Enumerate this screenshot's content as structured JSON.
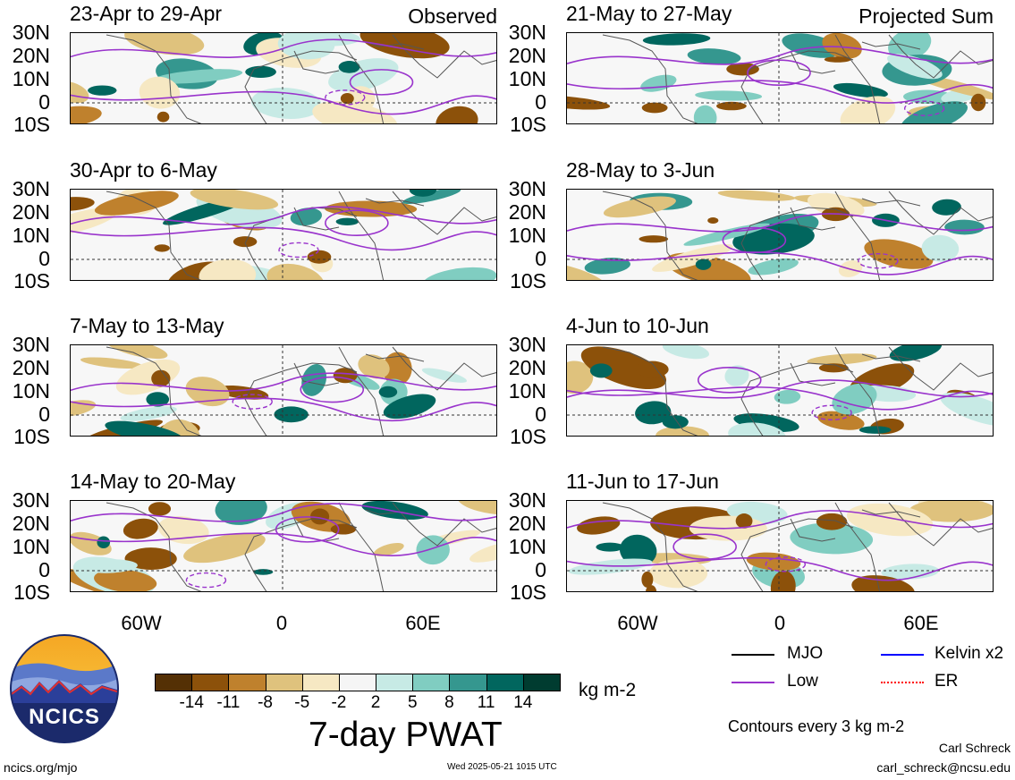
{
  "observed_tag": "Observed",
  "projected_tag": "Projected Sum",
  "panels": {
    "left": [
      {
        "title": "23-Apr to 29-Apr"
      },
      {
        "title": "30-Apr to 6-May"
      },
      {
        "title": "7-May to 13-May"
      },
      {
        "title": "14-May to 20-May"
      }
    ],
    "right": [
      {
        "title": "21-May to 27-May"
      },
      {
        "title": "28-May to 3-Jun"
      },
      {
        "title": "4-Jun to 10-Jun"
      },
      {
        "title": "11-Jun to 17-Jun"
      }
    ]
  },
  "lat_labels": [
    "30N",
    "20N",
    "10N",
    "0",
    "10S"
  ],
  "lon_labels": [
    "60W",
    "0",
    "60E"
  ],
  "colorbar": {
    "labels": [
      "-14",
      "-11",
      "-8",
      "-5",
      "-2",
      "2",
      "5",
      "8",
      "11",
      "14"
    ],
    "colors": [
      "#543005",
      "#8c510a",
      "#bf812d",
      "#dfc27d",
      "#f6e8c3",
      "#f5f5f5",
      "#c7eae5",
      "#80cdc1",
      "#35978f",
      "#01665e",
      "#003c30"
    ],
    "units": "kg m-2",
    "title": "7-day PWAT"
  },
  "legend": {
    "items": [
      {
        "label": "MJO",
        "color": "#000000"
      },
      {
        "label": "Kelvin x2",
        "color": "#0000ff"
      },
      {
        "label": "Low",
        "color": "#9933cc"
      },
      {
        "label": "ER",
        "color": "#ff0000"
      }
    ],
    "contour_note": "Contours every 3 kg m-2"
  },
  "footer": {
    "logo_text": "NCICS",
    "url": "ncics.org/mjo",
    "timestamp": "Wed 2025-05-21 1015 UTC",
    "author": "Carl Schreck",
    "email": "carl_schreck@ncsu.edu"
  }
}
